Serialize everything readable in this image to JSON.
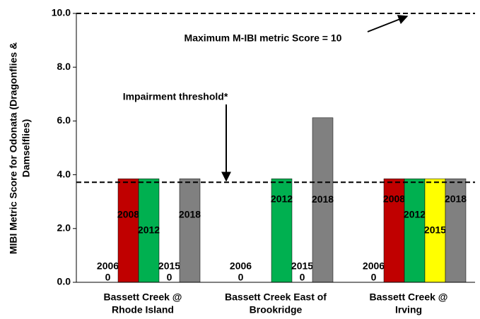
{
  "chart_data": {
    "type": "bar",
    "ylabel_lines": [
      "MIBI Metric Score for Odonata (Dragonflies &",
      "Damselflies)"
    ],
    "categories": [
      [
        "Bassett Creek @",
        "Rhode Island"
      ],
      [
        "Bassett Creek East of",
        "Brookridge"
      ],
      [
        "Bassett Creek @",
        "Irving"
      ]
    ],
    "series": [
      {
        "name": "2006",
        "color": "#ffffff",
        "values": [
          0,
          0,
          0
        ]
      },
      {
        "name": "2008",
        "color": "#c00000",
        "values": [
          3.85,
          null,
          3.85
        ]
      },
      {
        "name": "2012",
        "color": "#00b050",
        "values": [
          3.85,
          3.85,
          3.85
        ]
      },
      {
        "name": "2015",
        "color": "#ffff00",
        "values": [
          0,
          0,
          3.85
        ]
      },
      {
        "name": "2018",
        "color": "#808080",
        "values": [
          3.85,
          6.12,
          3.85
        ]
      }
    ],
    "ylim": [
      0,
      10
    ],
    "yticks": [
      {
        "value": 0,
        "label": "0.0"
      },
      {
        "value": 2,
        "label": "2.0"
      },
      {
        "value": 4,
        "label": "4.0"
      },
      {
        "value": 6,
        "label": "6.0"
      },
      {
        "value": 8,
        "label": "8.0"
      },
      {
        "value": 10,
        "label": "10.0"
      }
    ],
    "reference_lines": [
      {
        "value": 10,
        "label": "Maximum M-IBI metric Score = 10"
      },
      {
        "value": 3.72,
        "label": "Impairment threshold*"
      }
    ]
  }
}
